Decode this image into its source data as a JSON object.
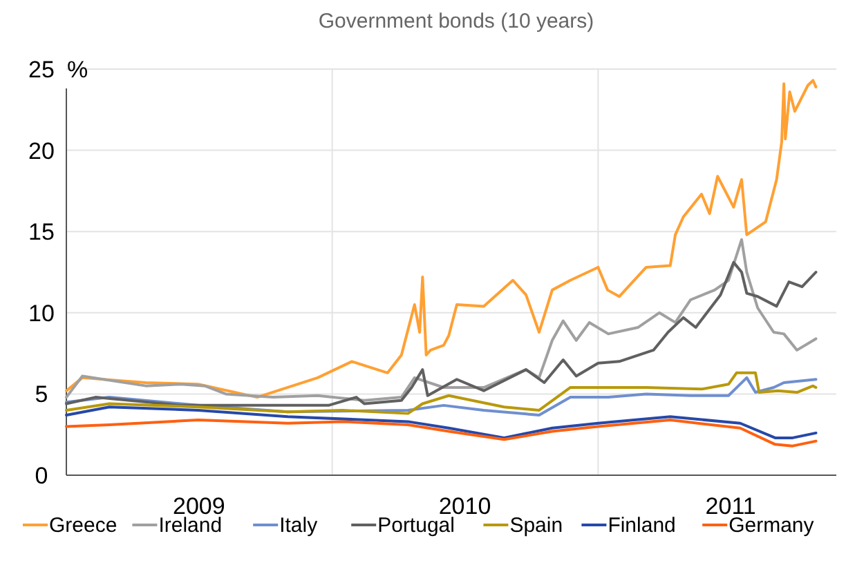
{
  "chart_data": {
    "type": "line",
    "subtitle": "Government bonds (10 years)",
    "ylabel": "%",
    "xlim": [
      "2009-01-01",
      "2011-11-24"
    ],
    "xticks": [
      {
        "value": "2009-07-02",
        "label": "2009"
      },
      {
        "value": "2010-07-02",
        "label": "2010"
      },
      {
        "value": "2011-07-02",
        "label": "2011"
      },
      {
        "value": "2010-01-01",
        "label": null
      },
      {
        "value": "2011-01-01",
        "label": null
      }
    ],
    "ylim": [
      0,
      25
    ],
    "yticks": [
      0,
      5,
      10,
      15,
      20,
      25
    ],
    "grid": true,
    "legend": "bottom",
    "line_style": "solid",
    "marker": "none",
    "series": [
      {
        "name": "Greece",
        "color": "#ffa033",
        "x": [
          "2009-01-01",
          "2009-01-23",
          "2009-04-20",
          "2009-07-01",
          "2009-09-20",
          "2009-12-12",
          "2010-01-28",
          "2010-03-18",
          "2010-04-06",
          "2010-04-24",
          "2010-05-01",
          "2010-05-05",
          "2010-05-10",
          "2010-05-16",
          "2010-06-03",
          "2010-06-10",
          "2010-06-21",
          "2010-07-28",
          "2010-09-06",
          "2010-09-24",
          "2010-10-12",
          "2010-10-30",
          "2010-11-24",
          "2011-01-01",
          "2011-01-14",
          "2011-01-30",
          "2011-03-08",
          "2011-04-10",
          "2011-04-17",
          "2011-04-28",
          "2011-05-23",
          "2011-06-03",
          "2011-06-14",
          "2011-07-06",
          "2011-07-17",
          "2011-07-24",
          "2011-08-19",
          "2011-09-03",
          "2011-09-10",
          "2011-09-13",
          "2011-09-15",
          "2011-09-21",
          "2011-09-28",
          "2011-10-16",
          "2011-10-23",
          "2011-10-27"
        ],
        "values": [
          5.2,
          6.0,
          5.7,
          5.6,
          4.8,
          6.0,
          7.0,
          6.3,
          7.4,
          10.5,
          8.8,
          12.2,
          7.4,
          7.7,
          8.0,
          8.6,
          10.5,
          10.4,
          12.0,
          11.1,
          8.8,
          11.4,
          12.0,
          12.8,
          11.4,
          11.0,
          12.8,
          12.9,
          14.8,
          15.9,
          17.3,
          16.1,
          18.4,
          16.5,
          18.2,
          14.8,
          15.6,
          18.2,
          20.5,
          24.1,
          20.7,
          23.6,
          22.4,
          24.0,
          24.3,
          23.9
        ]
      },
      {
        "name": "Ireland",
        "color": "#a0a0a0",
        "x": [
          "2009-01-01",
          "2009-01-23",
          "2009-04-20",
          "2009-06-07",
          "2009-07-10",
          "2009-08-08",
          "2009-10-12",
          "2009-12-12",
          "2010-02-14",
          "2010-04-06",
          "2010-04-24",
          "2010-06-03",
          "2010-07-28",
          "2010-09-24",
          "2010-10-12",
          "2010-10-30",
          "2010-11-14",
          "2010-12-02",
          "2010-12-20",
          "2011-01-15",
          "2011-02-25",
          "2011-03-26",
          "2011-04-17",
          "2011-05-08",
          "2011-06-10",
          "2011-06-29",
          "2011-07-17",
          "2011-07-24",
          "2011-08-08",
          "2011-08-30",
          "2011-09-13",
          "2011-10-01",
          "2011-10-27"
        ],
        "values": [
          4.8,
          6.1,
          5.5,
          5.6,
          5.5,
          5.0,
          4.8,
          4.9,
          4.6,
          4.8,
          6.0,
          5.4,
          5.4,
          6.5,
          6.0,
          8.3,
          9.5,
          8.3,
          9.4,
          8.7,
          9.1,
          10.0,
          9.4,
          10.8,
          11.4,
          12.0,
          14.5,
          12.5,
          10.3,
          8.8,
          8.7,
          7.7,
          8.4
        ]
      },
      {
        "name": "Italy",
        "color": "#6f8fcf",
        "x": [
          "2009-01-01",
          "2009-03-01",
          "2009-07-01",
          "2009-11-01",
          "2010-04-15",
          "2010-06-03",
          "2010-07-28",
          "2010-10-12",
          "2010-11-24",
          "2011-01-15",
          "2011-03-08",
          "2011-05-08",
          "2011-06-29",
          "2011-07-24",
          "2011-08-05",
          "2011-08-30",
          "2011-09-13",
          "2011-10-27"
        ],
        "values": [
          4.5,
          4.8,
          4.3,
          3.9,
          4.0,
          4.3,
          4.0,
          3.7,
          4.8,
          4.8,
          5.0,
          4.9,
          4.9,
          6.0,
          5.1,
          5.4,
          5.7,
          5.9
        ]
      },
      {
        "name": "Portugal",
        "color": "#606060",
        "x": [
          "2009-01-01",
          "2009-02-10",
          "2009-06-07",
          "2009-10-12",
          "2009-12-27",
          "2010-02-03",
          "2010-02-14",
          "2010-04-06",
          "2010-04-20",
          "2010-05-05",
          "2010-05-12",
          "2010-06-21",
          "2010-07-28",
          "2010-09-24",
          "2010-10-19",
          "2010-11-14",
          "2010-12-02",
          "2011-01-01",
          "2011-01-30",
          "2011-03-18",
          "2011-04-07",
          "2011-04-28",
          "2011-05-15",
          "2011-06-18",
          "2011-07-06",
          "2011-07-17",
          "2011-07-24",
          "2011-08-08",
          "2011-09-03",
          "2011-09-20",
          "2011-10-08",
          "2011-10-27"
        ],
        "values": [
          4.4,
          4.8,
          4.3,
          4.3,
          4.3,
          4.8,
          4.4,
          4.6,
          5.4,
          6.5,
          4.9,
          5.9,
          5.2,
          6.5,
          5.7,
          7.1,
          6.1,
          6.9,
          7.0,
          7.7,
          8.8,
          9.7,
          9.1,
          11.1,
          13.1,
          12.5,
          11.2,
          11.0,
          10.4,
          11.9,
          11.6,
          12.5
        ]
      },
      {
        "name": "Spain",
        "color": "#b8990a",
        "x": [
          "2009-01-01",
          "2009-03-01",
          "2009-07-01",
          "2009-11-01",
          "2010-01-15",
          "2010-04-15",
          "2010-05-05",
          "2010-06-10",
          "2010-08-25",
          "2010-10-12",
          "2010-11-24",
          "2011-01-15",
          "2011-03-08",
          "2011-05-23",
          "2011-06-29",
          "2011-07-10",
          "2011-08-05",
          "2011-08-10",
          "2011-09-05",
          "2011-10-01",
          "2011-10-23",
          "2011-10-27"
        ],
        "values": [
          4.0,
          4.4,
          4.2,
          3.9,
          4.0,
          3.8,
          4.4,
          4.9,
          4.2,
          4.0,
          5.4,
          5.4,
          5.4,
          5.3,
          5.6,
          6.3,
          6.3,
          5.1,
          5.2,
          5.1,
          5.5,
          5.4
        ]
      },
      {
        "name": "Finland",
        "color": "#2648a8",
        "x": [
          "2009-01-01",
          "2009-03-01",
          "2009-07-01",
          "2009-11-01",
          "2010-04-15",
          "2010-06-10",
          "2010-08-25",
          "2010-10-30",
          "2011-01-01",
          "2011-04-10",
          "2011-07-15",
          "2011-09-01",
          "2011-09-25",
          "2011-10-27"
        ],
        "values": [
          3.7,
          4.2,
          4.0,
          3.6,
          3.3,
          2.9,
          2.3,
          2.9,
          3.2,
          3.6,
          3.2,
          2.3,
          2.3,
          2.6
        ]
      },
      {
        "name": "Germany",
        "color": "#ff6010",
        "x": [
          "2009-01-01",
          "2009-03-01",
          "2009-07-01",
          "2009-11-01",
          "2010-01-15",
          "2010-04-15",
          "2010-06-10",
          "2010-08-25",
          "2010-10-30",
          "2011-01-01",
          "2011-04-10",
          "2011-07-15",
          "2011-09-01",
          "2011-09-25",
          "2011-10-27"
        ],
        "values": [
          3.0,
          3.1,
          3.4,
          3.2,
          3.3,
          3.1,
          2.7,
          2.2,
          2.7,
          3.0,
          3.4,
          2.9,
          1.9,
          1.8,
          2.1
        ]
      }
    ]
  }
}
